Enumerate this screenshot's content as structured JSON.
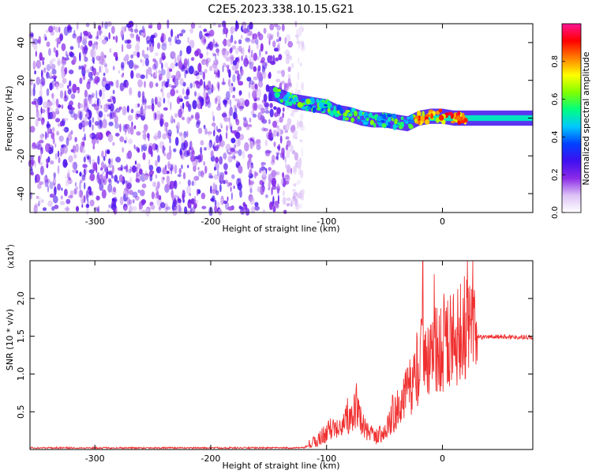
{
  "page": {
    "title": "C2E5.2023.338.10.15.G21"
  },
  "chart_data": [
    {
      "type": "heatmap",
      "xlabel": "Height of straight line (km)",
      "ylabel": "Frequency (Hz)",
      "xlim": [
        -356,
        78
      ],
      "ylim": [
        -50,
        50
      ],
      "xticks": [
        -300,
        -200,
        -100,
        0
      ],
      "yticks": [
        -40,
        -20,
        0,
        20,
        40
      ],
      "colorbar": {
        "label": "Normalized spectral amplitude",
        "range": [
          0.0,
          1.0
        ],
        "ticks": [
          "0.0",
          "0.2",
          "0.4",
          "0.6",
          "0.8"
        ],
        "colormap": [
          "#ffffff",
          "#dcc2f5",
          "#8b2be8",
          "#3f0ff0",
          "#0040ff",
          "#00c8ff",
          "#00ff80",
          "#80ff00",
          "#ffff00",
          "#ff8000",
          "#ff0000",
          "#ff1493"
        ]
      },
      "ridge": [
        {
          "x": -145,
          "y": 13
        },
        {
          "x": -130,
          "y": 9
        },
        {
          "x": -120,
          "y": 8
        },
        {
          "x": -110,
          "y": 7
        },
        {
          "x": -100,
          "y": 6
        },
        {
          "x": -90,
          "y": 3
        },
        {
          "x": -80,
          "y": 2
        },
        {
          "x": -70,
          "y": 0
        },
        {
          "x": -60,
          "y": -1
        },
        {
          "x": -50,
          "y": -1
        },
        {
          "x": -40,
          "y": -2
        },
        {
          "x": -30,
          "y": -3
        },
        {
          "x": -20,
          "y": 0
        },
        {
          "x": -10,
          "y": 1
        },
        {
          "x": 0,
          "y": 1
        },
        {
          "x": 10,
          "y": 0
        },
        {
          "x": 20,
          "y": 0
        },
        {
          "x": 78,
          "y": 0
        }
      ],
      "noise_extent_x": [
        -356,
        -120
      ]
    },
    {
      "type": "line",
      "xlabel": "Height of straight line (km)",
      "ylabel": "SNR (10 * v/v)",
      "ymultiplier": "(x10",
      "ymultiplier_exp": "4",
      "ymultiplier_close": ")",
      "xlim": [
        -356,
        78
      ],
      "ylim": [
        0,
        2.5
      ],
      "xticks": [
        -300,
        -200,
        -100,
        0
      ],
      "yticks": [
        0.5,
        1.0,
        1.5,
        2.0
      ],
      "color": "#f03030",
      "envelope": [
        {
          "x": -356,
          "y": 0.02
        },
        {
          "x": -200,
          "y": 0.02
        },
        {
          "x": -120,
          "y": 0.02
        },
        {
          "x": -110,
          "y": 0.08
        },
        {
          "x": -100,
          "y": 0.2
        },
        {
          "x": -90,
          "y": 0.3
        },
        {
          "x": -80,
          "y": 0.38
        },
        {
          "x": -75,
          "y": 0.5
        },
        {
          "x": -70,
          "y": 0.3
        },
        {
          "x": -60,
          "y": 0.15
        },
        {
          "x": -50,
          "y": 0.2
        },
        {
          "x": -40,
          "y": 0.45
        },
        {
          "x": -30,
          "y": 0.7
        },
        {
          "x": -20,
          "y": 0.95
        },
        {
          "x": -17,
          "y": 1.3
        },
        {
          "x": -10,
          "y": 1.15
        },
        {
          "x": 0,
          "y": 1.25
        },
        {
          "x": 10,
          "y": 1.35
        },
        {
          "x": 20,
          "y": 1.42
        },
        {
          "x": 30,
          "y": 1.48
        },
        {
          "x": 50,
          "y": 1.49
        },
        {
          "x": 78,
          "y": 1.48
        }
      ],
      "peaks": [
        {
          "x": -82,
          "y": 0.68
        },
        {
          "x": -75,
          "y": 0.6
        },
        {
          "x": -43,
          "y": 0.72
        },
        {
          "x": -30,
          "y": 1.08
        },
        {
          "x": -22,
          "y": 1.55
        },
        {
          "x": -17,
          "y": 2.5
        },
        {
          "x": -10,
          "y": 1.65
        },
        {
          "x": -4,
          "y": 1.48
        },
        {
          "x": 2,
          "y": 1.52
        },
        {
          "x": 12,
          "y": 1.62
        }
      ]
    }
  ]
}
